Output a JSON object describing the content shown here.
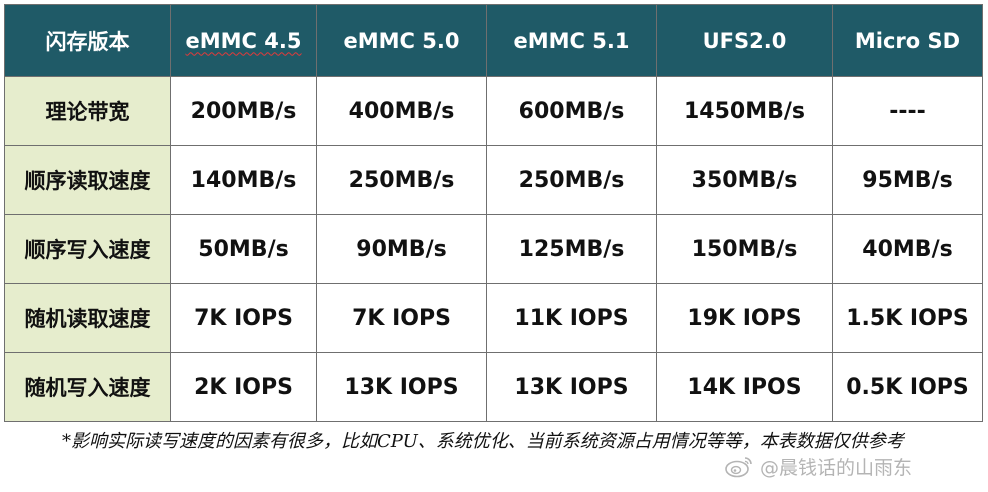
{
  "table": {
    "header": {
      "corner": "闪存版本",
      "columns": [
        {
          "label": "eMMC 4.5"
        },
        {
          "label": "eMMC 5.0"
        },
        {
          "label": "eMMC 5.1"
        },
        {
          "label": "UFS2.0"
        },
        {
          "label": "Micro SD"
        }
      ]
    },
    "rows": [
      {
        "label": "理论带宽",
        "cells": [
          "200MB/s",
          "400MB/s",
          "600MB/s",
          "1450MB/s",
          "----"
        ]
      },
      {
        "label": "顺序读取速度",
        "cells": [
          "140MB/s",
          "250MB/s",
          "250MB/s",
          "350MB/s",
          "95MB/s"
        ]
      },
      {
        "label": "顺序写入速度",
        "cells": [
          "50MB/s",
          "90MB/s",
          "125MB/s",
          "150MB/s",
          "40MB/s"
        ]
      },
      {
        "label": "随机读取速度",
        "cells": [
          "7K IOPS",
          "7K IOPS",
          "11K IOPS",
          "19K IOPS",
          "1.5K IOPS"
        ]
      },
      {
        "label": "随机写入速度",
        "cells": [
          "2K IOPS",
          "13K IOPS",
          "13K IOPS",
          "14K IPOS",
          "0.5K IOPS"
        ]
      }
    ]
  },
  "footnote": "*影响实际读写速度的因素有很多，比如CPU、系统优化、当前系统资源占用情况等等，本表数据仅供参考",
  "watermark": {
    "icon": "weibo-icon",
    "text": "@晨钱话的山雨东"
  },
  "colors": {
    "header_bg": "#1f5a67",
    "row_label_bg": "#e6edcd",
    "border": "#6f6f6f"
  }
}
